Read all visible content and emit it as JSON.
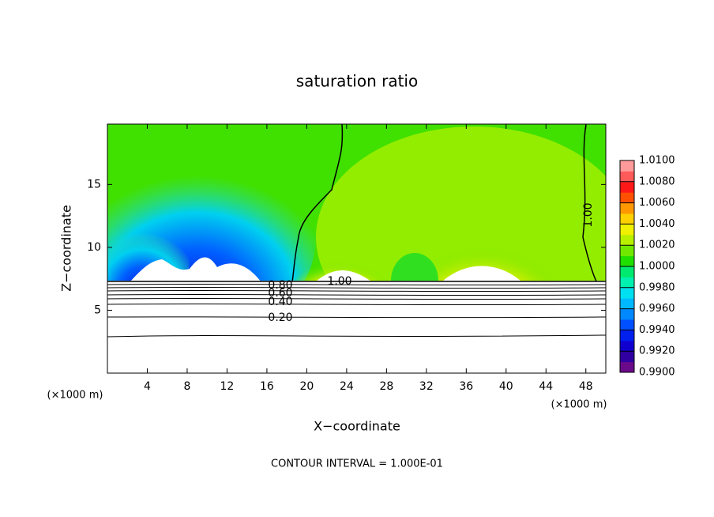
{
  "chart_data": {
    "type": "contour",
    "title": "saturation ratio",
    "x_label": "X−coordinate",
    "y_label": "Z−coordinate",
    "x_unit_left": "(×1000 m)",
    "x_unit_right": "(×1000 m)",
    "footer": "CONTOUR INTERVAL = 1.000E-01",
    "xlim": [
      0,
      50
    ],
    "xticks": [
      4,
      8,
      12,
      16,
      20,
      24,
      28,
      32,
      36,
      40,
      44,
      48
    ],
    "ylim": [
      0,
      19.8
    ],
    "yticks": [
      5,
      10,
      15
    ],
    "contour_labels": [
      "0.80",
      "0.60",
      "0.40",
      "0.20",
      "1.00",
      "1.00"
    ],
    "colorbar": {
      "clim": [
        0.99,
        1.01
      ],
      "ticks": [
        {
          "value": 0.99,
          "label": "0.9900"
        },
        {
          "value": 0.992,
          "label": "0.9920"
        },
        {
          "value": 0.994,
          "label": "0.9940"
        },
        {
          "value": 0.996,
          "label": "0.9960"
        },
        {
          "value": 0.998,
          "label": "0.9980"
        },
        {
          "value": 1.0,
          "label": "1.0000"
        },
        {
          "value": 1.002,
          "label": "1.0020"
        },
        {
          "value": 1.004,
          "label": "1.0040"
        },
        {
          "value": 1.006,
          "label": "1.0060"
        },
        {
          "value": 1.008,
          "label": "1.0080"
        },
        {
          "value": 1.01,
          "label": "1.0100"
        }
      ],
      "colors": [
        "#6a0a8a",
        "#3000a0",
        "#1000d0",
        "#0020f0",
        "#0050ff",
        "#0088ff",
        "#00b8ff",
        "#00e0f0",
        "#00f0b0",
        "#00ea70",
        "#20e000",
        "#70e800",
        "#b8f000",
        "#f0f000",
        "#ffd000",
        "#ff9800",
        "#ff5000",
        "#ff1818",
        "#ff5a5a",
        "#ff9a9a"
      ]
    }
  }
}
